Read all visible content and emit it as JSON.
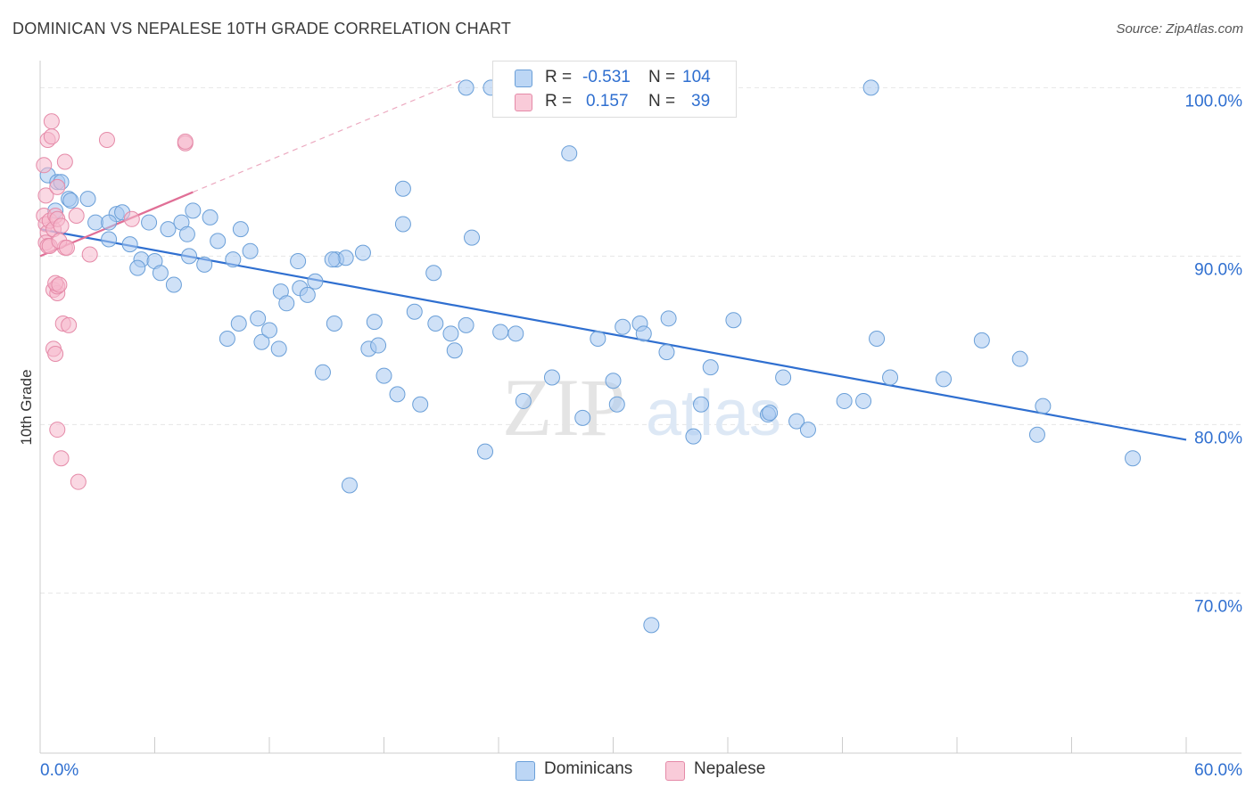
{
  "header": {
    "title": "DOMINICAN VS NEPALESE 10TH GRADE CORRELATION CHART",
    "source": "Source: ZipAtlas.com"
  },
  "watermark": {
    "zip": "ZIP",
    "atlas": "atlas"
  },
  "legend": {
    "rows": [
      {
        "r_label": "R =",
        "r_value": "-0.531",
        "n_label": "N =",
        "n_value": "104",
        "color": "#a8c8f0"
      },
      {
        "r_label": "R =",
        "r_value": "0.157",
        "n_label": "N =",
        "n_value": "39",
        "color": "#f5b8cc"
      }
    ],
    "bottom": [
      {
        "label": "Dominicans",
        "color": "#a8c8f0"
      },
      {
        "label": "Nepalese",
        "color": "#f5b8cc"
      }
    ]
  },
  "chart_data": {
    "type": "scatter",
    "title": "DOMINICAN VS NEPALESE 10TH GRADE CORRELATION CHART",
    "xlabel": "",
    "ylabel": "10th Grade",
    "xlim": [
      0,
      60
    ],
    "ylim": [
      60.5,
      101.5
    ],
    "x_tick_labels": [
      "0.0%",
      "60.0%"
    ],
    "y_ticks": [
      70,
      80,
      90,
      100
    ],
    "y_tick_labels": [
      "70.0%",
      "80.0%",
      "90.0%",
      "100.0%"
    ],
    "grid": true,
    "legend_position": "top-center",
    "series": [
      {
        "name": "Dominicans",
        "color": "#a8c8f0",
        "stroke": "#6a9fd8",
        "trend": {
          "x": [
            0,
            60
          ],
          "y": [
            91.6,
            79.1
          ],
          "color": "#2f6fd0"
        },
        "points": [
          [
            0.4,
            94.8
          ],
          [
            0.9,
            94.4
          ],
          [
            1.1,
            94.4
          ],
          [
            0.8,
            92.7
          ],
          [
            1.5,
            93.4
          ],
          [
            1.6,
            93.3
          ],
          [
            2.5,
            93.4
          ],
          [
            4.0,
            92.5
          ],
          [
            4.3,
            92.6
          ],
          [
            2.9,
            92.0
          ],
          [
            3.6,
            92.0
          ],
          [
            3.6,
            91.0
          ],
          [
            5.7,
            92.0
          ],
          [
            6.7,
            91.6
          ],
          [
            7.4,
            92.0
          ],
          [
            7.7,
            91.3
          ],
          [
            8.0,
            92.7
          ],
          [
            8.9,
            92.3
          ],
          [
            10.5,
            91.6
          ],
          [
            9.3,
            90.9
          ],
          [
            4.7,
            90.7
          ],
          [
            5.3,
            89.8
          ],
          [
            6.0,
            89.7
          ],
          [
            5.1,
            89.3
          ],
          [
            6.3,
            89.0
          ],
          [
            7.8,
            90.0
          ],
          [
            8.6,
            89.5
          ],
          [
            10.1,
            89.8
          ],
          [
            11.0,
            90.3
          ],
          [
            7.0,
            88.3
          ],
          [
            12.6,
            87.9
          ],
          [
            13.6,
            88.1
          ],
          [
            12.9,
            87.2
          ],
          [
            14.0,
            87.7
          ],
          [
            14.4,
            88.5
          ],
          [
            13.5,
            89.7
          ],
          [
            15.5,
            89.8
          ],
          [
            16.0,
            89.9
          ],
          [
            16.9,
            90.2
          ],
          [
            9.8,
            85.1
          ],
          [
            10.4,
            86.0
          ],
          [
            11.4,
            86.3
          ],
          [
            11.6,
            84.9
          ],
          [
            12.0,
            85.6
          ],
          [
            12.5,
            84.5
          ],
          [
            14.8,
            83.1
          ],
          [
            15.4,
            86.0
          ],
          [
            15.3,
            89.8
          ],
          [
            17.2,
            84.5
          ],
          [
            17.7,
            84.7
          ],
          [
            17.5,
            86.1
          ],
          [
            18.0,
            82.9
          ],
          [
            18.7,
            81.8
          ],
          [
            19.0,
            91.9
          ],
          [
            19.0,
            94.0
          ],
          [
            19.6,
            86.7
          ],
          [
            19.9,
            81.2
          ],
          [
            20.7,
            86.0
          ],
          [
            20.6,
            89.0
          ],
          [
            21.5,
            85.4
          ],
          [
            21.7,
            84.4
          ],
          [
            22.3,
            85.9
          ],
          [
            22.6,
            91.1
          ],
          [
            22.3,
            100.0
          ],
          [
            23.6,
            100.0
          ],
          [
            23.3,
            78.4
          ],
          [
            24.1,
            85.5
          ],
          [
            24.9,
            85.4
          ],
          [
            25.3,
            81.4
          ],
          [
            26.1,
            100.0
          ],
          [
            26.8,
            82.8
          ],
          [
            27.7,
            96.1
          ],
          [
            28.4,
            80.4
          ],
          [
            30.0,
            82.6
          ],
          [
            29.2,
            85.1
          ],
          [
            30.2,
            81.2
          ],
          [
            30.5,
            85.8
          ],
          [
            31.4,
            86.0
          ],
          [
            31.6,
            85.4
          ],
          [
            32.2,
            100.0
          ],
          [
            32.8,
            84.3
          ],
          [
            32.9,
            86.3
          ],
          [
            34.2,
            79.3
          ],
          [
            34.6,
            81.2
          ],
          [
            35.1,
            83.4
          ],
          [
            36.3,
            86.2
          ],
          [
            38.1,
            80.6
          ],
          [
            38.2,
            80.7
          ],
          [
            38.9,
            82.8
          ],
          [
            39.6,
            80.2
          ],
          [
            40.2,
            79.7
          ],
          [
            42.1,
            81.4
          ],
          [
            43.1,
            81.4
          ],
          [
            43.8,
            85.1
          ],
          [
            44.5,
            82.8
          ],
          [
            43.5,
            100.0
          ],
          [
            47.3,
            82.7
          ],
          [
            49.3,
            85.0
          ],
          [
            51.3,
            83.9
          ],
          [
            52.2,
            79.4
          ],
          [
            52.5,
            81.1
          ],
          [
            57.2,
            78.0
          ],
          [
            32.0,
            68.1
          ],
          [
            16.2,
            76.4
          ]
        ]
      },
      {
        "name": "Nepalese",
        "color": "#f5b8cc",
        "stroke": "#e58aa8",
        "trend": {
          "x": [
            0,
            8.0
          ],
          "y": [
            90.0,
            93.8
          ],
          "dash_x": [
            8.0,
            22.2
          ],
          "dash_y": [
            93.8,
            100.5
          ],
          "color": "#e06f96"
        },
        "points": [
          [
            0.2,
            92.4
          ],
          [
            0.3,
            93.6
          ],
          [
            0.2,
            95.4
          ],
          [
            0.4,
            96.9
          ],
          [
            0.6,
            97.1
          ],
          [
            0.6,
            98.0
          ],
          [
            0.3,
            91.9
          ],
          [
            0.4,
            91.4
          ],
          [
            0.5,
            92.1
          ],
          [
            0.7,
            91.6
          ],
          [
            0.8,
            92.4
          ],
          [
            0.9,
            92.2
          ],
          [
            1.1,
            91.8
          ],
          [
            0.3,
            90.8
          ],
          [
            0.4,
            90.6
          ],
          [
            0.5,
            90.6
          ],
          [
            1.3,
            90.5
          ],
          [
            1.0,
            90.9
          ],
          [
            1.4,
            90.5
          ],
          [
            1.9,
            92.4
          ],
          [
            2.6,
            90.1
          ],
          [
            0.9,
            94.1
          ],
          [
            1.3,
            95.6
          ],
          [
            3.5,
            96.9
          ],
          [
            7.6,
            96.7
          ],
          [
            7.6,
            96.8
          ],
          [
            4.8,
            92.2
          ],
          [
            0.7,
            88.0
          ],
          [
            0.9,
            87.8
          ],
          [
            0.9,
            88.2
          ],
          [
            0.8,
            88.4
          ],
          [
            1.0,
            88.3
          ],
          [
            1.2,
            86.0
          ],
          [
            1.5,
            85.9
          ],
          [
            0.7,
            84.5
          ],
          [
            0.8,
            84.2
          ],
          [
            0.9,
            79.7
          ],
          [
            1.1,
            78.0
          ],
          [
            2.0,
            76.6
          ]
        ]
      }
    ]
  }
}
